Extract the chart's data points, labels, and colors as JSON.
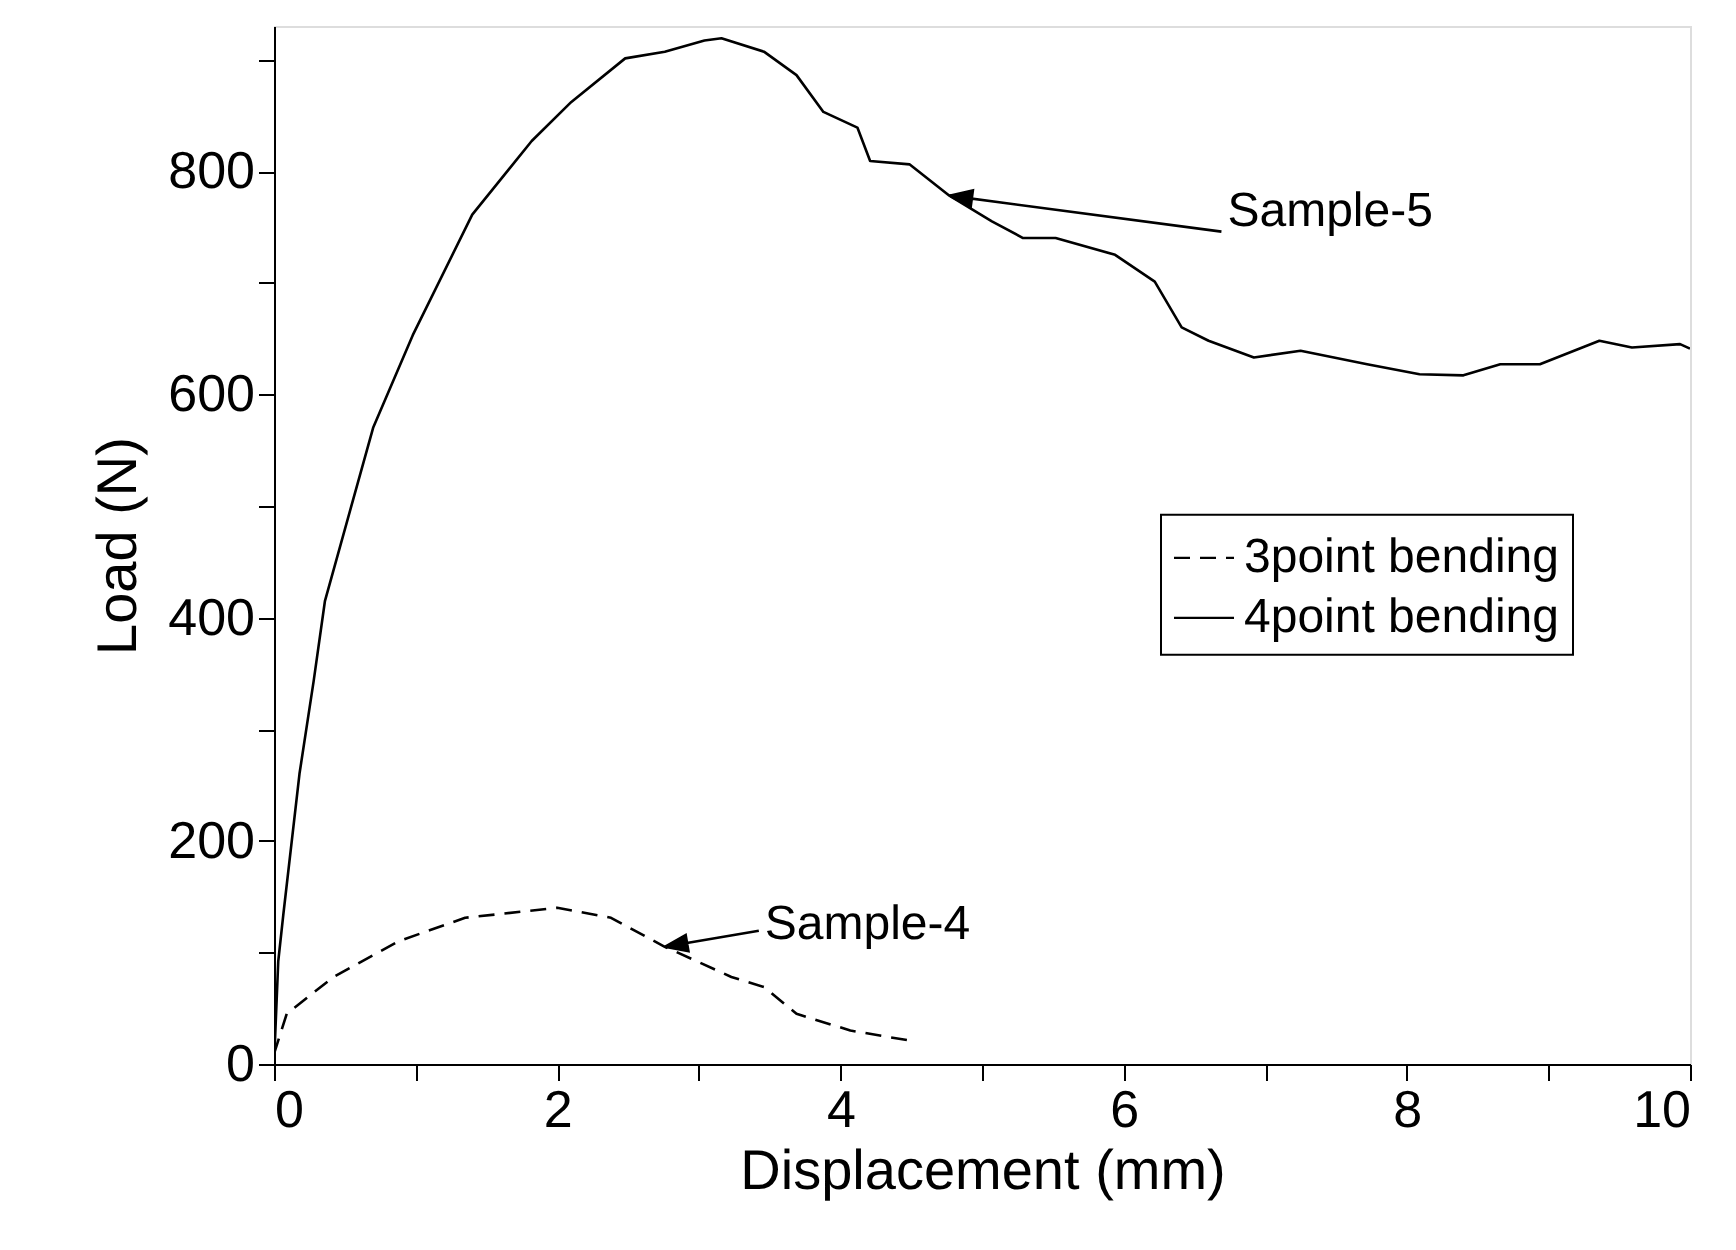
{
  "chart_data": {
    "type": "line",
    "xlabel": "Displacement (mm)",
    "ylabel": "Load (N)",
    "xlim": [
      0,
      10
    ],
    "ylim": [
      0,
      930
    ],
    "xticks": [
      0,
      {
        "value": 1,
        "label": null
      },
      2,
      {
        "value": 3,
        "label": null
      },
      4,
      {
        "value": 5,
        "label": null
      },
      6,
      {
        "value": 7,
        "label": null
      },
      8,
      {
        "value": 9,
        "label": null
      },
      10
    ],
    "yticks": [
      0,
      {
        "value": 100,
        "label": null
      },
      200,
      {
        "value": 300,
        "label": null
      },
      400,
      {
        "value": 500,
        "label": null
      },
      600,
      {
        "value": 700,
        "label": null
      },
      800,
      {
        "value": 900,
        "label": null
      }
    ],
    "grid": false,
    "legend": "right",
    "marker": "none",
    "series": [
      {
        "name": "3point bending",
        "color": "#000000",
        "line_style": "dashed",
        "x": [
          0,
          0.09,
          0.42,
          0.88,
          1.35,
          2.0,
          2.38,
          2.76,
          3.23,
          3.46,
          3.69,
          4.07,
          4.49
        ],
        "values": [
          9,
          45,
          78,
          110,
          131,
          140,
          131,
          105,
          78,
          69,
          45,
          30,
          21
        ]
      },
      {
        "name": "4point bending",
        "color": "#000000",
        "line_style": "solid",
        "x": [
          0,
          0.03,
          0.066,
          0.18,
          0.28,
          0.36,
          0.7,
          0.98,
          1.4,
          1.82,
          2.1,
          2.48,
          2.76,
          3.04,
          3.16,
          3.46,
          3.69,
          3.88,
          4.12,
          4.21,
          4.49,
          4.77,
          5.07,
          5.29,
          5.52,
          5.94,
          6.22,
          6.41,
          6.6,
          6.92,
          7.25,
          7.72,
          8.09,
          8.4,
          8.66,
          8.94,
          9.36,
          9.59,
          9.93,
          10
        ],
        "values": [
          0,
          92,
          134,
          260,
          343,
          415,
          570,
          653,
          761,
          827,
          862,
          901,
          907,
          917,
          919,
          907,
          886,
          853,
          839,
          809,
          806,
          778,
          755,
          740,
          740,
          725,
          701,
          660,
          648,
          633,
          639,
          627,
          618,
          617,
          627,
          627,
          648,
          642,
          645,
          641
        ]
      }
    ],
    "annotations": [
      {
        "text": "Sample-5",
        "x": 4.77,
        "y": 778
      },
      {
        "text": "Sample-4",
        "x": 2.76,
        "y": 105
      }
    ]
  }
}
